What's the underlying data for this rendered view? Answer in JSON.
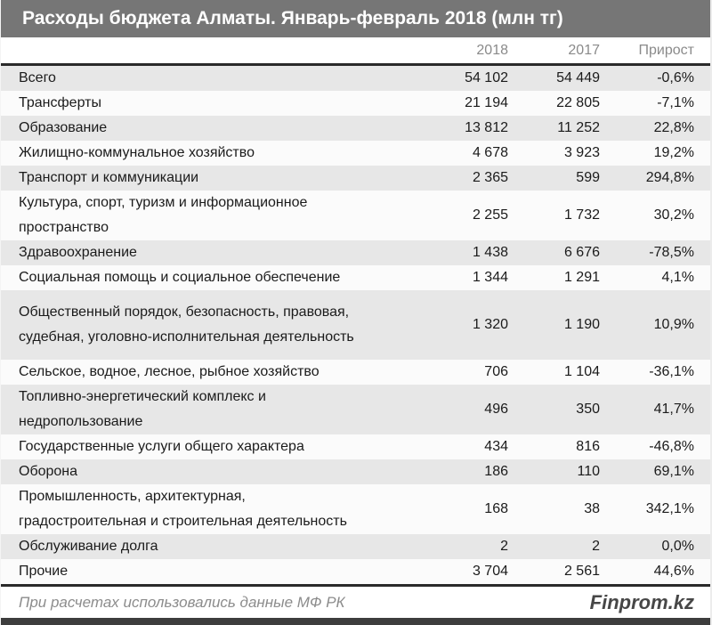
{
  "title": "Расходы бюджета Алматы. Январь-февраль 2018 (млн тг)",
  "columns": {
    "y2018": "2018",
    "y2017": "2017",
    "growth": "Прирост"
  },
  "chart_data": {
    "type": "table",
    "title": "Расходы бюджета Алматы. Январь-февраль 2018 (млн тг)",
    "unit": "млн тг",
    "columns": [
      "",
      "2018",
      "2017",
      "Прирост"
    ],
    "rows": [
      {
        "label": "Всего",
        "v2018": "54 102",
        "v2017": "54 449",
        "growth": "-0,6%"
      },
      {
        "label": "Трансферты",
        "v2018": "21 194",
        "v2017": "22 805",
        "growth": "-7,1%"
      },
      {
        "label": "Образование",
        "v2018": "13 812",
        "v2017": "11 252",
        "growth": "22,8%"
      },
      {
        "label": "Жилищно-коммунальное хозяйство",
        "v2018": "4 678",
        "v2017": "3 923",
        "growth": "19,2%"
      },
      {
        "label": "Транспорт и коммуникации",
        "v2018": "2 365",
        "v2017": "599",
        "growth": "294,8%"
      },
      {
        "label": "Культура, спорт, туризм и информационное\nпространство",
        "v2018": "2 255",
        "v2017": "1 732",
        "growth": "30,2%"
      },
      {
        "label": "Здравоохранение",
        "v2018": "1 438",
        "v2017": "6 676",
        "growth": "-78,5%"
      },
      {
        "label": "Социальная помощь и социальное обеспечение",
        "v2018": "1 344",
        "v2017": "1 291",
        "growth": "4,1%"
      },
      {
        "label": "Общественный порядок, безопасность, правовая,\nсудебная, уголовно-исполнительная деятельность",
        "v2018": "1 320",
        "v2017": "1 190",
        "growth": "10,9%"
      },
      {
        "label": "Сельское, водное, лесное, рыбное хозяйство",
        "v2018": "706",
        "v2017": "1 104",
        "growth": "-36,1%"
      },
      {
        "label": "Топливно-энергетический комплекс и\nнедропользование",
        "v2018": "496",
        "v2017": "350",
        "growth": "41,7%"
      },
      {
        "label": "Государственные услуги общего характера",
        "v2018": "434",
        "v2017": "816",
        "growth": "-46,8%"
      },
      {
        "label": "Оборона",
        "v2018": "186",
        "v2017": "110",
        "growth": "69,1%"
      },
      {
        "label": "Промышленность, архитектурная,\nградостроительная и строительная деятельность",
        "v2018": "168",
        "v2017": "38",
        "growth": "342,1%"
      },
      {
        "label": "Обслуживание долга",
        "v2018": "2",
        "v2017": "2",
        "growth": "0,0%"
      },
      {
        "label": "Прочие",
        "v2018": "3 704",
        "v2017": "2 561",
        "growth": "44,6%"
      }
    ]
  },
  "footer": {
    "source_note": "При расчетах использовались данные МФ РК",
    "brand": "Finprom.kz"
  },
  "colors": {
    "title_bar_bg": "#767676",
    "title_text": "#ffffff",
    "header_text": "#8a8a8a",
    "body_text": "#1b1b1b",
    "stripe_gray": "#e7e7e7",
    "stripe_white": "#fbfbfb",
    "rule_dark": "#2a2a2a",
    "bottom_bar": "#3d3d3d"
  }
}
